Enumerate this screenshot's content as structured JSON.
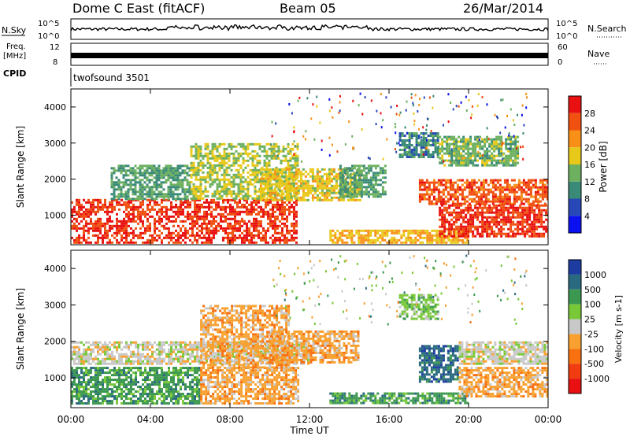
{
  "header": {
    "station": "Dome C East (fitACF)",
    "beam": "Beam 05",
    "date": "26/Mar/2014"
  },
  "side_labels": {
    "nsky": "N.Sky",
    "freq": "Freq.",
    "freq_unit": "[MHz]",
    "cpid": "CPID",
    "nsearch": "N.Search",
    "nave": "Nave",
    "cpid_value": "twofsound 3501"
  },
  "noise_panel": {
    "left_ticks": [
      "10^5",
      "10^0"
    ],
    "right_ticks": [
      "10^5",
      "10^0"
    ]
  },
  "freq_panel": {
    "left_ticks": [
      "12",
      "8"
    ],
    "right_ticks": [
      "60",
      "0"
    ]
  },
  "chart_data": [
    {
      "type": "heatmap",
      "title": "",
      "xlabel": "",
      "ylabel": "Slant Range [km]",
      "ylim": [
        180,
        4500
      ],
      "xlim_hours": [
        0,
        24
      ],
      "yticks": [
        "1000",
        "2000",
        "3000",
        "4000"
      ],
      "colorbar_label": "Power [dB]",
      "colorbar_ticks": [
        "4",
        "8",
        "12",
        "16",
        "20",
        "24",
        "28"
      ],
      "colorbar_range": [
        0,
        32
      ],
      "colorbar_colors": [
        "#0a10f0",
        "#2848b8",
        "#3a8a78",
        "#6cb060",
        "#e8c818",
        "#f89018",
        "#f05010",
        "#e81010"
      ],
      "echo_regions": [
        {
          "t": [
            0.0,
            11.4
          ],
          "range": [
            250,
            1450
          ],
          "level": 28
        },
        {
          "t": [
            2.0,
            6.0
          ],
          "range": [
            1450,
            2400
          ],
          "level": 12
        },
        {
          "t": [
            6.0,
            11.4
          ],
          "range": [
            1450,
            3000
          ],
          "level": 16
        },
        {
          "t": [
            9.5,
            14.5
          ],
          "range": [
            1400,
            2300
          ],
          "level": 18
        },
        {
          "t": [
            13.5,
            15.8
          ],
          "range": [
            1500,
            2400
          ],
          "level": 12
        },
        {
          "t": [
            13.0,
            20.0
          ],
          "range": [
            250,
            600
          ],
          "level": 20
        },
        {
          "t": [
            16.5,
            18.5
          ],
          "range": [
            2600,
            3300
          ],
          "level": 10
        },
        {
          "t": [
            17.5,
            24.0
          ],
          "range": [
            1300,
            2000
          ],
          "level": 26
        },
        {
          "t": [
            18.5,
            24.0
          ],
          "range": [
            400,
            1300
          ],
          "level": 28
        },
        {
          "t": [
            18.5,
            22.5
          ],
          "range": [
            2400,
            3200
          ],
          "level": 14
        }
      ]
    },
    {
      "type": "heatmap",
      "title": "",
      "xlabel": "Time UT",
      "ylabel": "Slant Range [km]",
      "ylim": [
        180,
        4500
      ],
      "xlim_hours": [
        0,
        24
      ],
      "xticks": [
        "00:00",
        "04:00",
        "08:00",
        "12:00",
        "16:00",
        "20:00",
        "00:00"
      ],
      "yticks": [
        "1000",
        "2000",
        "3000",
        "4000"
      ],
      "colorbar_label": "Velocity [m s-1]",
      "colorbar_ticks": [
        "1000",
        "500",
        "100",
        "25",
        "-25",
        "-100",
        "-500",
        "-1000"
      ],
      "colorbar_colors": [
        "#1c3ca0",
        "#2a6a80",
        "#3c9850",
        "#78c838",
        "#c8c8c8",
        "#f8a030",
        "#f87010",
        "#f03c10",
        "#e81010"
      ],
      "echo_regions": [
        {
          "t": [
            0.0,
            6.5
          ],
          "range": [
            300,
            1300
          ],
          "level": "100"
        },
        {
          "t": [
            0.0,
            12.0
          ],
          "range": [
            1400,
            2000
          ],
          "level": "0"
        },
        {
          "t": [
            6.5,
            11.4
          ],
          "range": [
            300,
            1300
          ],
          "level": "-100"
        },
        {
          "t": [
            6.5,
            11.0
          ],
          "range": [
            1300,
            3000
          ],
          "level": "-100"
        },
        {
          "t": [
            10.0,
            14.5
          ],
          "range": [
            1400,
            2300
          ],
          "level": "-100"
        },
        {
          "t": [
            13.0,
            20.0
          ],
          "range": [
            300,
            600
          ],
          "level": "100"
        },
        {
          "t": [
            16.5,
            18.5
          ],
          "range": [
            2600,
            3300
          ],
          "level": "25"
        },
        {
          "t": [
            17.5,
            19.5
          ],
          "range": [
            900,
            1900
          ],
          "level": "500"
        },
        {
          "t": [
            19.5,
            24.0
          ],
          "range": [
            500,
            1300
          ],
          "level": "-100"
        },
        {
          "t": [
            19.5,
            24.0
          ],
          "range": [
            1400,
            2000
          ],
          "level": "0"
        }
      ]
    }
  ]
}
